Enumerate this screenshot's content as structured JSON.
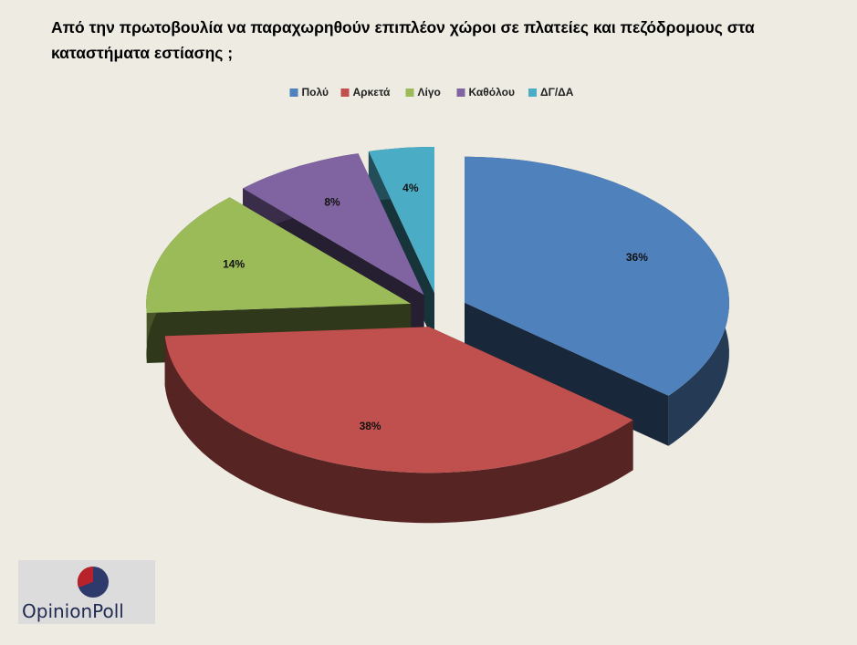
{
  "chart_data": {
    "type": "pie3d",
    "title": "Από την πρωτοβουλία να παραχωρηθούν επιπλέον χώροι σε πλατείες και πεζόδρομους στα καταστήματα εστίασης ;",
    "categories": [
      "Πολύ",
      "Αρκετά",
      "Λίγο",
      "Καθόλου",
      "ΔΓ/ΔΑ"
    ],
    "values": [
      36,
      38,
      14,
      8,
      4
    ],
    "value_labels": [
      "36%",
      "38%",
      "14%",
      "8%",
      "4%"
    ],
    "colors": [
      "#4f81bd",
      "#c0504d",
      "#9bbb59",
      "#8064a2",
      "#4bacc6"
    ],
    "legend": "top",
    "logo": "OpinionPoll"
  }
}
